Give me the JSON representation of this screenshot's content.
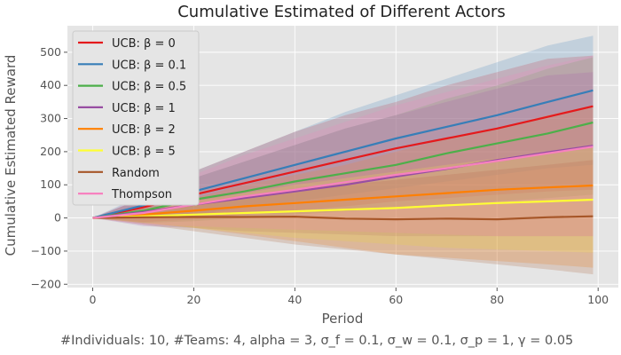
{
  "chart_data": {
    "type": "line",
    "title": "Cumulative Estimated of Different Actors",
    "xlabel": "Period",
    "ylabel": "Cumulative Estimated Reward",
    "caption": "#Individuals: 10,  #Teams: 4,  alpha = 3,  σ_f = 0.1,  σ_w = 0.1,  σ_p = 1, γ = 0.05",
    "xlim": [
      -5,
      104
    ],
    "ylim": [
      -210,
      580
    ],
    "xticks": [
      0,
      20,
      40,
      60,
      80,
      100
    ],
    "yticks": [
      -200,
      -100,
      0,
      100,
      200,
      300,
      400,
      500
    ],
    "grid": true,
    "legend_position": "top-left",
    "background": "#e5e5e5",
    "series": [
      {
        "name": "UCB: β = 0",
        "color": "#e41a1c",
        "x": [
          0,
          10,
          20,
          30,
          40,
          50,
          60,
          70,
          80,
          90,
          99
        ],
        "y": [
          0,
          32,
          70,
          105,
          140,
          175,
          210,
          240,
          270,
          305,
          337
        ],
        "band_low": [
          0,
          -12,
          -5,
          10,
          22,
          35,
          50,
          60,
          70,
          80,
          85
        ],
        "band_high": [
          0,
          60,
          140,
          200,
          260,
          310,
          350,
          400,
          440,
          480,
          490
        ]
      },
      {
        "name": "UCB: β = 0.1",
        "color": "#377eb8",
        "x": [
          0,
          10,
          20,
          30,
          40,
          50,
          60,
          70,
          80,
          90,
          99
        ],
        "y": [
          0,
          38,
          80,
          120,
          160,
          200,
          240,
          275,
          310,
          350,
          385
        ],
        "band_low": [
          0,
          -5,
          10,
          30,
          50,
          70,
          90,
          110,
          130,
          150,
          160
        ],
        "band_high": [
          0,
          70,
          140,
          200,
          260,
          320,
          370,
          420,
          470,
          520,
          550
        ]
      },
      {
        "name": "UCB: β = 0.5",
        "color": "#4daf4a",
        "x": [
          0,
          10,
          20,
          30,
          40,
          50,
          60,
          70,
          80,
          90,
          99
        ],
        "y": [
          0,
          22,
          55,
          80,
          110,
          135,
          160,
          195,
          225,
          255,
          288
        ],
        "band_low": [
          0,
          -15,
          -10,
          0,
          10,
          20,
          30,
          40,
          50,
          60,
          70
        ],
        "band_high": [
          0,
          60,
          120,
          170,
          220,
          270,
          310,
          360,
          400,
          450,
          485
        ]
      },
      {
        "name": "UCB: β = 1",
        "color": "#984ea3",
        "x": [
          0,
          10,
          20,
          30,
          40,
          50,
          60,
          70,
          80,
          90,
          99
        ],
        "y": [
          0,
          18,
          40,
          60,
          80,
          100,
          125,
          148,
          175,
          198,
          218
        ],
        "band_low": [
          0,
          -25,
          -30,
          -40,
          -45,
          -50,
          -55,
          -55,
          -55,
          -55,
          -55
        ],
        "band_high": [
          0,
          60,
          120,
          170,
          220,
          270,
          310,
          350,
          390,
          430,
          440
        ]
      },
      {
        "name": "UCB: β = 2",
        "color": "#ff7f00",
        "x": [
          0,
          10,
          20,
          30,
          40,
          50,
          60,
          70,
          80,
          90,
          99
        ],
        "y": [
          0,
          10,
          22,
          35,
          45,
          55,
          65,
          75,
          85,
          92,
          98
        ],
        "band_low": [
          0,
          -15,
          -30,
          -50,
          -70,
          -90,
          -110,
          -120,
          -130,
          -140,
          -150
        ],
        "band_high": [
          0,
          30,
          60,
          100,
          130,
          160,
          200,
          240,
          270,
          310,
          340
        ]
      },
      {
        "name": "UCB: β = 5",
        "color": "#ffff33",
        "x": [
          0,
          10,
          20,
          30,
          40,
          50,
          60,
          70,
          80,
          90,
          99
        ],
        "y": [
          0,
          5,
          10,
          15,
          20,
          25,
          30,
          38,
          45,
          50,
          55
        ],
        "band_low": [
          0,
          -15,
          -30,
          -45,
          -60,
          -70,
          -80,
          -90,
          -95,
          -100,
          -105
        ],
        "band_high": [
          0,
          25,
          50,
          75,
          100,
          120,
          140,
          160,
          180,
          200,
          215
        ]
      },
      {
        "name": "Random",
        "color": "#a65628",
        "x": [
          0,
          10,
          20,
          30,
          40,
          50,
          60,
          70,
          80,
          90,
          99
        ],
        "y": [
          0,
          2,
          3,
          3,
          4,
          -2,
          -4,
          -2,
          -4,
          2,
          5
        ],
        "band_low": [
          0,
          -20,
          -40,
          -60,
          -80,
          -95,
          -110,
          -125,
          -140,
          -155,
          -170
        ],
        "band_high": [
          0,
          22,
          45,
          65,
          85,
          100,
          115,
          130,
          145,
          160,
          175
        ]
      },
      {
        "name": "Thompson",
        "color": "#f781bf",
        "x": [
          0,
          10,
          20,
          30,
          40,
          50,
          60,
          70,
          80,
          90,
          99
        ],
        "y": [
          0,
          15,
          40,
          65,
          85,
          108,
          130,
          150,
          172,
          195,
          215
        ],
        "band_low": [
          0,
          -20,
          -25,
          -30,
          -35,
          -40,
          -45,
          -50,
          -55,
          -55,
          -55
        ],
        "band_high": [
          0,
          65,
          130,
          190,
          240,
          290,
          340,
          380,
          420,
          460,
          490
        ]
      }
    ]
  }
}
